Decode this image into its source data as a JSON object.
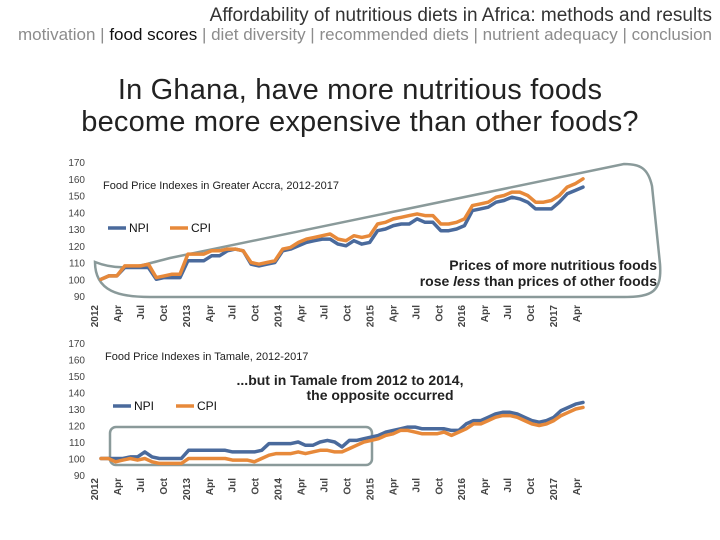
{
  "header": {
    "title": "Affordability of nutritious diets in Africa: methods and results",
    "nav": [
      {
        "label": "motivation",
        "current": false
      },
      {
        "label": "food scores",
        "current": true
      },
      {
        "label": "diet diversity",
        "current": false
      },
      {
        "label": "recommended diets",
        "current": false
      },
      {
        "label": "nutrient adequacy",
        "current": false
      },
      {
        "label": "conclusion",
        "current": false
      }
    ],
    "separator": " | "
  },
  "slide_title": {
    "line1": "In Ghana, have more nutritious foods",
    "line2": "become more expensive than other foods?"
  },
  "colors": {
    "npi": "#4a6a9c",
    "cpi": "#e7893a",
    "highlight": "#8a9a9a"
  },
  "chart_data": [
    {
      "type": "line",
      "title": "Food Price Indexes in Greater Accra, 2012-2017",
      "ylim": [
        90,
        170
      ],
      "yticks": [
        90,
        100,
        110,
        120,
        130,
        140,
        150,
        160,
        170
      ],
      "xticks": [
        "2012",
        "Apr",
        "Jul",
        "Oct",
        "2013",
        "Apr",
        "Jul",
        "Oct",
        "2014",
        "Apr",
        "Jul",
        "Oct",
        "2015",
        "Apr",
        "Jul",
        "Oct",
        "2016",
        "Apr",
        "Jul",
        "Oct",
        "2017",
        "Apr"
      ],
      "legend": [
        "NPI",
        "CPI"
      ],
      "annotation": {
        "pre": "Prices of more nutritious foods",
        "mid_pre": "rose ",
        "mid_em": "less",
        "mid_post": " than prices of other foods"
      },
      "series": [
        {
          "name": "NPI",
          "values": [
            100,
            102,
            102,
            107,
            107,
            107,
            107,
            100,
            101,
            101,
            101,
            111,
            111,
            111,
            114,
            114,
            117,
            118,
            117,
            109,
            108,
            109,
            110,
            117,
            118,
            120,
            122,
            123,
            124,
            124,
            121,
            120,
            123,
            121,
            122,
            129,
            130,
            132,
            133,
            133,
            136,
            134,
            134,
            129,
            129,
            130,
            132,
            141,
            142,
            143,
            146,
            147,
            149,
            148,
            146,
            142,
            142,
            142,
            146,
            151,
            153,
            155
          ]
        },
        {
          "name": "CPI",
          "values": [
            100,
            102,
            102,
            108,
            108,
            108,
            109,
            101,
            102,
            103,
            103,
            115,
            115,
            115,
            117,
            117,
            118,
            118,
            117,
            110,
            109,
            110,
            111,
            118,
            119,
            122,
            124,
            125,
            126,
            127,
            124,
            123,
            126,
            125,
            126,
            133,
            134,
            136,
            137,
            138,
            139,
            138,
            138,
            133,
            133,
            134,
            136,
            144,
            145,
            146,
            149,
            150,
            152,
            152,
            150,
            146,
            146,
            147,
            150,
            155,
            157,
            160
          ]
        }
      ]
    },
    {
      "type": "line",
      "title": "Food Price Indexes in Tamale, 2012-2017",
      "ylim": [
        90,
        170
      ],
      "yticks": [
        90,
        100,
        110,
        120,
        130,
        140,
        150,
        160,
        170
      ],
      "xticks": [
        "2012",
        "Apr",
        "Jul",
        "Oct",
        "2013",
        "Apr",
        "Jul",
        "Oct",
        "2014",
        "Apr",
        "Jul",
        "Oct",
        "2015",
        "Apr",
        "Jul",
        "Oct",
        "2016",
        "Apr",
        "Jul",
        "Oct",
        "2017",
        "Apr"
      ],
      "legend": [
        "NPI",
        "CPI"
      ],
      "annotation": {
        "line1": "...but in Tamale from 2012 to 2014,",
        "line2": "the opposite occurred"
      },
      "series": [
        {
          "name": "NPI",
          "values": [
            100,
            100,
            100,
            100,
            101,
            101,
            104,
            101,
            100,
            100,
            100,
            100,
            105,
            105,
            105,
            105,
            105,
            105,
            104,
            104,
            104,
            104,
            105,
            109,
            109,
            109,
            109,
            110,
            108,
            108,
            110,
            111,
            110,
            107,
            111,
            111,
            112,
            113,
            114,
            116,
            117,
            118,
            119,
            119,
            118,
            118,
            118,
            118,
            117,
            117,
            121,
            123,
            123,
            125,
            127,
            128,
            128,
            127,
            125,
            123,
            122,
            123,
            125,
            129,
            131,
            133,
            134
          ]
        },
        {
          "name": "CPI",
          "values": [
            100,
            100,
            98,
            99,
            100,
            99,
            100,
            98,
            97,
            97,
            97,
            97,
            100,
            100,
            100,
            100,
            100,
            100,
            99,
            99,
            99,
            98,
            100,
            102,
            103,
            103,
            103,
            104,
            103,
            104,
            105,
            105,
            104,
            104,
            106,
            108,
            110,
            111,
            112,
            114,
            115,
            117,
            117,
            116,
            115,
            115,
            115,
            116,
            114,
            116,
            118,
            121,
            121,
            123,
            125,
            126,
            126,
            125,
            123,
            121,
            120,
            121,
            123,
            126,
            128,
            130,
            131
          ]
        }
      ]
    }
  ]
}
